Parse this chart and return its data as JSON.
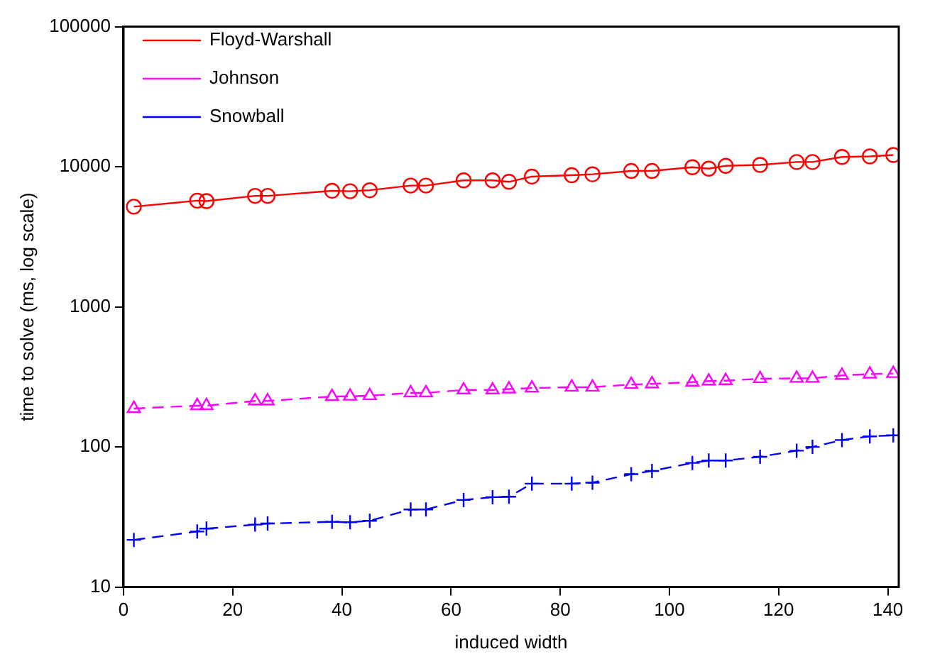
{
  "chart_data": {
    "type": "line",
    "xlabel": "induced width",
    "ylabel": "time to solve (ms, log scale)",
    "x": [
      1.9,
      13.5,
      15.2,
      24.1,
      26.4,
      38.2,
      41.5,
      45.1,
      52.6,
      55.4,
      62.3,
      67.6,
      70.6,
      74.8,
      82.1,
      85.9,
      93.0,
      96.8,
      104.2,
      107.2,
      110.3,
      116.6,
      123.3,
      126.2,
      131.6,
      136.7,
      141.0
    ],
    "series": [
      {
        "name": "Floyd-Warshall",
        "color": "#ff0000",
        "marker": "circle",
        "line_style": "solid",
        "values": [
          5190,
          5730,
          5690,
          6200,
          6200,
          6740,
          6690,
          6800,
          7340,
          7340,
          8000,
          8000,
          7810,
          8510,
          8700,
          8840,
          9330,
          9330,
          9920,
          9700,
          10150,
          10310,
          10810,
          10810,
          11750,
          11860,
          12130
        ]
      },
      {
        "name": "Johnson",
        "color": "#ff00ff",
        "marker": "triangle",
        "line_style": "dashed",
        "values": [
          188,
          197,
          197,
          213,
          213,
          229,
          230,
          232,
          243,
          243,
          255,
          255,
          259,
          263,
          267,
          267,
          279,
          282,
          290,
          295,
          297,
          307,
          309,
          309,
          324,
          331,
          334
        ]
      },
      {
        "name": "Snowball",
        "color": "#0000ff",
        "marker": "cross",
        "line_style": "dashed",
        "values": [
          21.7,
          24.9,
          26.1,
          27.9,
          28.4,
          29.2,
          29.0,
          29.7,
          35.8,
          35.8,
          41.8,
          43.8,
          44.1,
          54.7,
          54.7,
          55.6,
          63.9,
          67.4,
          76.9,
          80.0,
          80.0,
          85.1,
          94.0,
          100,
          112,
          119,
          121
        ]
      }
    ],
    "xlim": [
      0,
      142
    ],
    "xticks": [
      0,
      20,
      40,
      60,
      80,
      100,
      120,
      140
    ],
    "log": "y",
    "ylim": [
      10,
      100000
    ],
    "yticks": [
      10,
      100,
      1000,
      10000,
      100000
    ],
    "grid": false,
    "legend": "top left"
  }
}
